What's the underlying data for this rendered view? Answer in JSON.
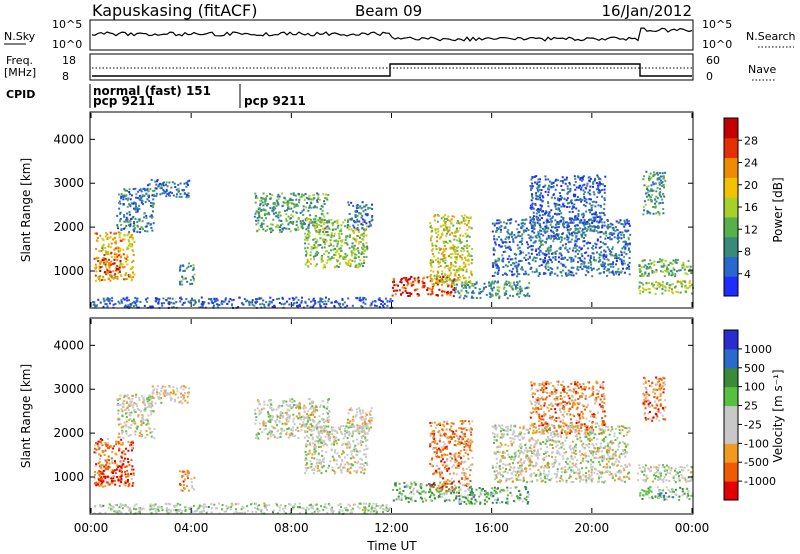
{
  "header": {
    "station": "Kapuskasing (fitACF)",
    "beam": "Beam 09",
    "date": "16/Jan/2012"
  },
  "summary": {
    "nsky_label": "N.Sky",
    "nsky_ticks": [
      "10^5",
      "10^0"
    ],
    "nsearch_label": "N.Search",
    "nsearch_ticks": [
      "10^5",
      "10^0"
    ],
    "freq_label": "Freq.",
    "freq_unit": "[MHz]",
    "freq_ticks": [
      "18",
      "8"
    ],
    "nave_label": "Nave",
    "nave_ticks": [
      "60",
      "0"
    ],
    "cpid_label": "CPID",
    "cpid_segments": [
      {
        "label": "normal (fast) 151",
        "sublabel": "pcp 9211",
        "start_hour": 0
      },
      {
        "label": "pcp 9211",
        "sublabel": "",
        "start_hour": 6.0
      }
    ]
  },
  "chart_data": [
    {
      "type": "heatmap",
      "title": "",
      "parameter": "Power",
      "xlabel": "",
      "ylabel": "Slant Range [km]",
      "xlim": [
        0,
        24
      ],
      "ylim": [
        180,
        4600
      ],
      "yticks": [
        1000,
        2000,
        3000,
        4000
      ],
      "colorbar": {
        "label": "Power [dB]",
        "tick_labels": [
          "4",
          "8",
          "12",
          "16",
          "20",
          "24",
          "28"
        ],
        "colors": [
          "#1f2cff",
          "#2a67cf",
          "#3a8a7a",
          "#58b04a",
          "#a8d02a",
          "#f2c200",
          "#f08a00",
          "#e43000",
          "#c40000"
        ]
      },
      "regions": [
        {
          "t0": 0.1,
          "t1": 1.7,
          "r0": 800,
          "r1": 1900,
          "level": 0.65
        },
        {
          "t0": 0.3,
          "t1": 1.2,
          "r0": 900,
          "r1": 1300,
          "level": 0.85
        },
        {
          "t0": 1.0,
          "t1": 2.5,
          "r0": 1900,
          "r1": 2900,
          "level": 0.25
        },
        {
          "t0": 2.2,
          "t1": 3.9,
          "r0": 2700,
          "r1": 3100,
          "level": 0.2
        },
        {
          "t0": 3.5,
          "t1": 4.1,
          "r0": 700,
          "r1": 1200,
          "level": 0.3
        },
        {
          "t0": 6.5,
          "t1": 9.5,
          "r0": 1900,
          "r1": 2800,
          "level": 0.35
        },
        {
          "t0": 8.5,
          "t1": 11.0,
          "r0": 1100,
          "r1": 2200,
          "level": 0.45
        },
        {
          "t0": 10.2,
          "t1": 11.2,
          "r0": 2000,
          "r1": 2600,
          "level": 0.2
        },
        {
          "t0": 12.0,
          "t1": 14.5,
          "r0": 450,
          "r1": 900,
          "level": 0.9
        },
        {
          "t0": 13.5,
          "t1": 15.2,
          "r0": 700,
          "r1": 2300,
          "level": 0.55
        },
        {
          "t0": 14.5,
          "t1": 17.5,
          "r0": 400,
          "r1": 800,
          "level": 0.3
        },
        {
          "t0": 16.0,
          "t1": 21.5,
          "r0": 900,
          "r1": 2200,
          "level": 0.2
        },
        {
          "t0": 17.5,
          "t1": 20.5,
          "r0": 2000,
          "r1": 3200,
          "level": 0.15
        },
        {
          "t0": 21.8,
          "t1": 24.0,
          "r0": 500,
          "r1": 800,
          "level": 0.5
        },
        {
          "t0": 21.8,
          "t1": 24.0,
          "r0": 900,
          "r1": 1300,
          "level": 0.4
        },
        {
          "t0": 22.0,
          "t1": 22.9,
          "r0": 2300,
          "r1": 3300,
          "level": 0.3
        },
        {
          "t0": 0.0,
          "t1": 12.0,
          "r0": 180,
          "r1": 420,
          "level": 0.15
        }
      ]
    },
    {
      "type": "heatmap",
      "title": "",
      "parameter": "Velocity",
      "xlabel": "Time UT",
      "ylabel": "Slant Range [km]",
      "xlim": [
        0,
        24
      ],
      "ylim": [
        180,
        4600
      ],
      "xtick_labels": [
        "00:00",
        "04:00",
        "08:00",
        "12:00",
        "16:00",
        "20:00",
        "00:00"
      ],
      "yticks": [
        1000,
        2000,
        3000,
        4000
      ],
      "colorbar": {
        "label": "Velocity [m s⁻¹]",
        "tick_labels": [
          "-1000",
          "-500",
          "-100",
          "-25",
          "25",
          "100",
          "500",
          "1000"
        ],
        "colors": [
          "#e40000",
          "#f05a00",
          "#f09a20",
          "#c8c8c8",
          "#c8c8c8",
          "#58c040",
          "#3a8a3a",
          "#2a6acb",
          "#2a2cd0"
        ]
      },
      "regions": [
        {
          "t0": 0.1,
          "t1": 1.7,
          "r0": 800,
          "r1": 1900,
          "level": 0.2
        },
        {
          "t0": 0.3,
          "t1": 1.2,
          "r0": 900,
          "r1": 1300,
          "level": 0.1
        },
        {
          "t0": 1.0,
          "t1": 2.5,
          "r0": 1900,
          "r1": 2900,
          "level": 0.45
        },
        {
          "t0": 2.2,
          "t1": 3.9,
          "r0": 2700,
          "r1": 3100,
          "level": 0.4
        },
        {
          "t0": 3.5,
          "t1": 4.1,
          "r0": 700,
          "r1": 1200,
          "level": 0.25
        },
        {
          "t0": 6.5,
          "t1": 9.5,
          "r0": 1900,
          "r1": 2800,
          "level": 0.45
        },
        {
          "t0": 8.5,
          "t1": 11.0,
          "r0": 1100,
          "r1": 2200,
          "level": 0.45
        },
        {
          "t0": 10.2,
          "t1": 11.2,
          "r0": 2000,
          "r1": 2600,
          "level": 0.4
        },
        {
          "t0": 12.0,
          "t1": 14.5,
          "r0": 450,
          "r1": 900,
          "level": 0.62
        },
        {
          "t0": 13.5,
          "t1": 15.2,
          "r0": 700,
          "r1": 2300,
          "level": 0.25
        },
        {
          "t0": 14.5,
          "t1": 17.5,
          "r0": 400,
          "r1": 800,
          "level": 0.65
        },
        {
          "t0": 16.0,
          "t1": 21.5,
          "r0": 900,
          "r1": 2200,
          "level": 0.45
        },
        {
          "t0": 17.5,
          "t1": 20.5,
          "r0": 2000,
          "r1": 3200,
          "level": 0.25
        },
        {
          "t0": 21.8,
          "t1": 24.0,
          "r0": 500,
          "r1": 800,
          "level": 0.62
        },
        {
          "t0": 21.8,
          "t1": 24.0,
          "r0": 900,
          "r1": 1300,
          "level": 0.48
        },
        {
          "t0": 22.0,
          "t1": 22.9,
          "r0": 2300,
          "r1": 3300,
          "level": 0.25
        },
        {
          "t0": 0.0,
          "t1": 12.0,
          "r0": 180,
          "r1": 420,
          "level": 0.5
        }
      ]
    }
  ]
}
